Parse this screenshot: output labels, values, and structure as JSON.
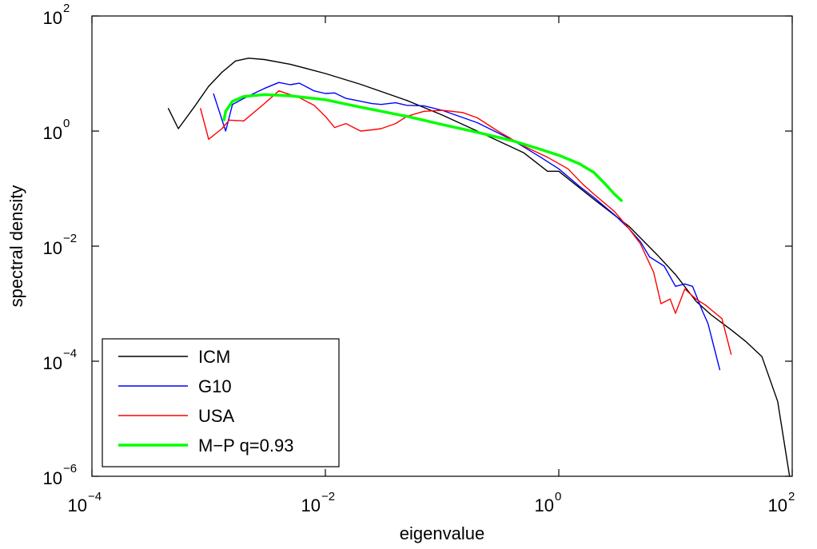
{
  "chart_data": {
    "type": "line",
    "title": "",
    "xlabel": "eigenvalue",
    "ylabel": "spectral density",
    "xscale": "log",
    "yscale": "log",
    "xlim": [
      0.0001,
      100
    ],
    "ylim": [
      1e-06,
      100
    ],
    "grid": false,
    "legend_position": "bottom-left",
    "x_ticks": [
      {
        "base": "10",
        "exp": "−4",
        "value": 0.0001
      },
      {
        "base": "10",
        "exp": "−2",
        "value": 0.01
      },
      {
        "base": "10",
        "exp": "0",
        "value": 1
      },
      {
        "base": "10",
        "exp": "2",
        "value": 100
      }
    ],
    "y_ticks": [
      {
        "base": "10",
        "exp": "−6",
        "value": 1e-06
      },
      {
        "base": "10",
        "exp": "−4",
        "value": 0.0001
      },
      {
        "base": "10",
        "exp": "−2",
        "value": 0.01
      },
      {
        "base": "10",
        "exp": "0",
        "value": 1
      },
      {
        "base": "10",
        "exp": "2",
        "value": 100
      }
    ],
    "series": [
      {
        "name": "ICM",
        "color": "#000000",
        "points": [
          [
            0.00045,
            2.5
          ],
          [
            0.00055,
            1.1
          ],
          [
            0.00075,
            2.6
          ],
          [
            0.001,
            6.0
          ],
          [
            0.0013,
            10.5
          ],
          [
            0.0017,
            16.5
          ],
          [
            0.0022,
            18.5
          ],
          [
            0.003,
            17.5
          ],
          [
            0.005,
            14.5
          ],
          [
            0.01,
            10.0
          ],
          [
            0.02,
            6.5
          ],
          [
            0.05,
            3.4
          ],
          [
            0.1,
            1.9
          ],
          [
            0.2,
            1.0
          ],
          [
            0.5,
            0.42
          ],
          [
            0.8,
            0.2
          ],
          [
            1.0,
            0.2
          ],
          [
            2.0,
            0.065
          ],
          [
            4.0,
            0.022
          ],
          [
            7.0,
            0.007
          ],
          [
            10.0,
            0.0032
          ],
          [
            15.0,
            0.0011
          ],
          [
            20.0,
            0.00065
          ],
          [
            30.0,
            0.00035
          ],
          [
            40.0,
            0.00022
          ],
          [
            55.0,
            0.00012
          ],
          [
            75.0,
            2e-05
          ],
          [
            95.0,
            1e-06
          ]
        ]
      },
      {
        "name": "G10",
        "color": "#0000ff",
        "points": [
          [
            0.0011,
            4.5
          ],
          [
            0.0014,
            1.0
          ],
          [
            0.0016,
            2.9
          ],
          [
            0.002,
            3.7
          ],
          [
            0.0025,
            4.6
          ],
          [
            0.003,
            5.5
          ],
          [
            0.004,
            7.0
          ],
          [
            0.005,
            6.4
          ],
          [
            0.006,
            6.8
          ],
          [
            0.008,
            5.0
          ],
          [
            0.01,
            4.5
          ],
          [
            0.012,
            4.6
          ],
          [
            0.015,
            3.7
          ],
          [
            0.02,
            3.3
          ],
          [
            0.025,
            3.0
          ],
          [
            0.03,
            2.9
          ],
          [
            0.04,
            3.1
          ],
          [
            0.05,
            2.8
          ],
          [
            0.07,
            2.75
          ],
          [
            0.1,
            2.3
          ],
          [
            0.2,
            1.4
          ],
          [
            0.4,
            0.7
          ],
          [
            0.7,
            0.35
          ],
          [
            1.0,
            0.22
          ],
          [
            1.5,
            0.11
          ],
          [
            2.0,
            0.07
          ],
          [
            3.0,
            0.035
          ],
          [
            4.0,
            0.02
          ],
          [
            5.0,
            0.012
          ],
          [
            6.0,
            0.0065
          ],
          [
            8.0,
            0.0045
          ],
          [
            10.0,
            0.002
          ],
          [
            12.0,
            0.0022
          ],
          [
            14.0,
            0.002
          ],
          [
            17.0,
            0.00075
          ],
          [
            19.0,
            0.00045
          ],
          [
            24.0,
            7e-05
          ]
        ]
      },
      {
        "name": "USA",
        "color": "#ff0000",
        "points": [
          [
            0.00085,
            2.5
          ],
          [
            0.001,
            0.72
          ],
          [
            0.0013,
            1.1
          ],
          [
            0.0015,
            1.55
          ],
          [
            0.002,
            1.5
          ],
          [
            0.003,
            3.0
          ],
          [
            0.004,
            5.0
          ],
          [
            0.006,
            3.8
          ],
          [
            0.008,
            2.8
          ],
          [
            0.01,
            1.8
          ],
          [
            0.012,
            1.15
          ],
          [
            0.015,
            1.35
          ],
          [
            0.02,
            1.0
          ],
          [
            0.025,
            1.05
          ],
          [
            0.03,
            1.1
          ],
          [
            0.04,
            1.35
          ],
          [
            0.05,
            1.8
          ],
          [
            0.07,
            2.2
          ],
          [
            0.1,
            2.3
          ],
          [
            0.15,
            2.1
          ],
          [
            0.2,
            1.7
          ],
          [
            0.3,
            1.0
          ],
          [
            0.5,
            0.55
          ],
          [
            0.8,
            0.35
          ],
          [
            1.2,
            0.22
          ],
          [
            1.6,
            0.12
          ],
          [
            2.0,
            0.08
          ],
          [
            3.0,
            0.04
          ],
          [
            4.0,
            0.02
          ],
          [
            5.0,
            0.011
          ],
          [
            6.5,
            0.0035
          ],
          [
            7.5,
            0.001
          ],
          [
            9.0,
            0.0012
          ],
          [
            10.0,
            0.00068
          ],
          [
            12.0,
            0.0018
          ],
          [
            15.0,
            0.0012
          ],
          [
            18.0,
            0.00095
          ],
          [
            25.0,
            0.00055
          ],
          [
            30.0,
            0.00013
          ]
        ]
      },
      {
        "name": "M−P q=0.93",
        "color": "#00ff00",
        "points": [
          [
            0.00135,
            1.5
          ],
          [
            0.0014,
            2.2
          ],
          [
            0.0016,
            3.3
          ],
          [
            0.002,
            4.0
          ],
          [
            0.003,
            4.3
          ],
          [
            0.005,
            4.1
          ],
          [
            0.01,
            3.5
          ],
          [
            0.02,
            2.6
          ],
          [
            0.05,
            1.8
          ],
          [
            0.1,
            1.3
          ],
          [
            0.2,
            0.95
          ],
          [
            0.4,
            0.68
          ],
          [
            0.7,
            0.48
          ],
          [
            1.0,
            0.38
          ],
          [
            1.5,
            0.27
          ],
          [
            2.0,
            0.19
          ],
          [
            2.5,
            0.12
          ],
          [
            3.0,
            0.08
          ],
          [
            3.5,
            0.06
          ]
        ]
      }
    ]
  }
}
